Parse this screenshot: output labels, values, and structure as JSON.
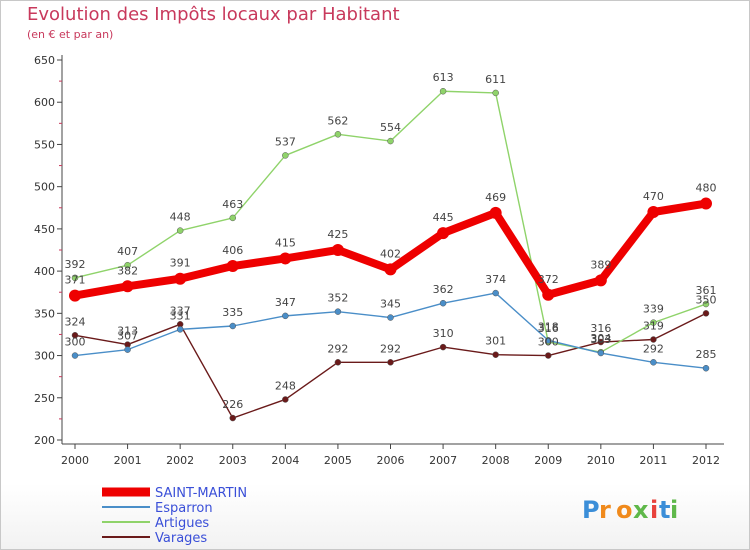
{
  "title": "Evolution des Impôts locaux par Habitant",
  "subtitle": "(en € et par an)",
  "brand": {
    "text": "Proxiti",
    "letters": [
      "P",
      "r",
      "o",
      "x",
      "i",
      "t",
      "i"
    ],
    "colors": [
      "#3b8ed8",
      "#f08a1c",
      "#f08a1c",
      "#5fb84a",
      "#e8423c",
      "#3b8ed8",
      "#5fb84a"
    ]
  },
  "chart_data": {
    "type": "line",
    "x": [
      "2000",
      "2001",
      "2002",
      "2003",
      "2004",
      "2005",
      "2006",
      "2007",
      "2008",
      "2009",
      "2010",
      "2011",
      "2012"
    ],
    "ylim": [
      200,
      650
    ],
    "yticks": [
      "200",
      "250",
      "300",
      "350",
      "400",
      "450",
      "500",
      "550",
      "600",
      "650"
    ],
    "grid": false,
    "legend_position": "bottom-left",
    "series": [
      {
        "name": "SAINT-MARTIN",
        "color": "#ee0000",
        "values": [
          371,
          382,
          391,
          406,
          415,
          425,
          402,
          445,
          469,
          372,
          389,
          470,
          480
        ]
      },
      {
        "name": "Esparron",
        "color": "#4a8ec8",
        "values": [
          300,
          307,
          331,
          335,
          347,
          352,
          345,
          362,
          374,
          318,
          303,
          292,
          285
        ]
      },
      {
        "name": "Artigues",
        "color": "#8fd36a",
        "values": [
          392,
          407,
          448,
          463,
          537,
          562,
          554,
          613,
          611,
          316,
          304,
          339,
          361
        ]
      },
      {
        "name": "Varages",
        "color": "#6a1a1a",
        "values": [
          324,
          313,
          337,
          226,
          248,
          292,
          292,
          310,
          301,
          300,
          316,
          319,
          350
        ]
      }
    ]
  }
}
